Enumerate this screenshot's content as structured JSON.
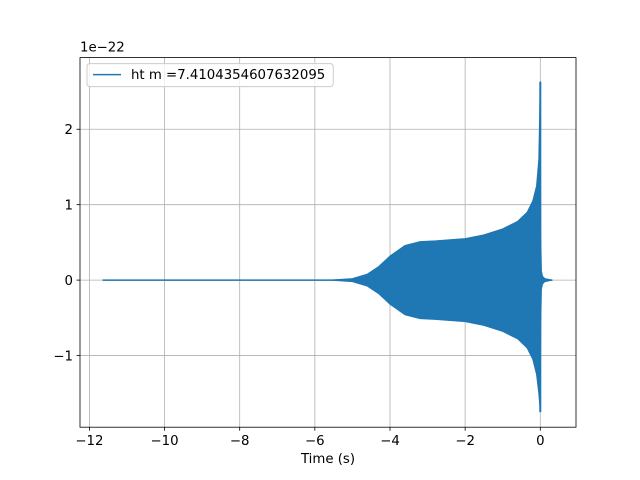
{
  "chart_data": {
    "type": "line",
    "xlabel": "Time (s)",
    "ylabel": "",
    "offset_label": "1e−22",
    "xlim": [
      -12.25,
      0.95
    ],
    "ylim": [
      -1.95,
      2.95
    ],
    "xticks": [
      -12,
      -10,
      -8,
      -6,
      -4,
      -2,
      0
    ],
    "xtick_labels": [
      "−12",
      "−10",
      "−8",
      "−6",
      "−4",
      "−2",
      "0"
    ],
    "yticks": [
      -1,
      0,
      1,
      2
    ],
    "ytick_labels": [
      "−1",
      "0",
      "1",
      "2"
    ],
    "grid": true,
    "legend_position": "upper-left",
    "series": [
      {
        "name": "ht m =7.4104354607632095",
        "color": "#1f77b4",
        "x_range": [
          -11.65,
          0.32
        ],
        "envelope_upper": [
          [
            -11.65,
            0.0
          ],
          [
            -5.6,
            0.0
          ],
          [
            -5.0,
            0.02
          ],
          [
            -4.6,
            0.08
          ],
          [
            -4.3,
            0.18
          ],
          [
            -4.0,
            0.32
          ],
          [
            -3.6,
            0.46
          ],
          [
            -3.2,
            0.51
          ],
          [
            -2.8,
            0.52
          ],
          [
            -2.0,
            0.55
          ],
          [
            -1.5,
            0.6
          ],
          [
            -1.0,
            0.68
          ],
          [
            -0.6,
            0.78
          ],
          [
            -0.35,
            0.9
          ],
          [
            -0.2,
            1.05
          ],
          [
            -0.1,
            1.25
          ],
          [
            -0.04,
            1.6
          ],
          [
            0.0,
            2.63
          ],
          [
            0.01,
            0.6
          ],
          [
            0.03,
            0.12
          ],
          [
            0.06,
            0.05
          ],
          [
            0.12,
            0.02
          ],
          [
            0.32,
            0.0
          ]
        ],
        "envelope_lower": [
          [
            -11.65,
            0.0
          ],
          [
            -5.6,
            0.0
          ],
          [
            -5.0,
            -0.02
          ],
          [
            -4.6,
            -0.08
          ],
          [
            -4.3,
            -0.18
          ],
          [
            -4.0,
            -0.32
          ],
          [
            -3.6,
            -0.46
          ],
          [
            -3.2,
            -0.51
          ],
          [
            -2.8,
            -0.52
          ],
          [
            -2.0,
            -0.55
          ],
          [
            -1.5,
            -0.6
          ],
          [
            -1.0,
            -0.68
          ],
          [
            -0.6,
            -0.78
          ],
          [
            -0.35,
            -0.9
          ],
          [
            -0.2,
            -1.05
          ],
          [
            -0.1,
            -1.25
          ],
          [
            -0.04,
            -1.5
          ],
          [
            0.0,
            -1.75
          ],
          [
            0.01,
            -0.6
          ],
          [
            0.03,
            -0.12
          ],
          [
            0.06,
            -0.05
          ],
          [
            0.12,
            -0.02
          ],
          [
            0.32,
            0.0
          ]
        ]
      }
    ]
  }
}
